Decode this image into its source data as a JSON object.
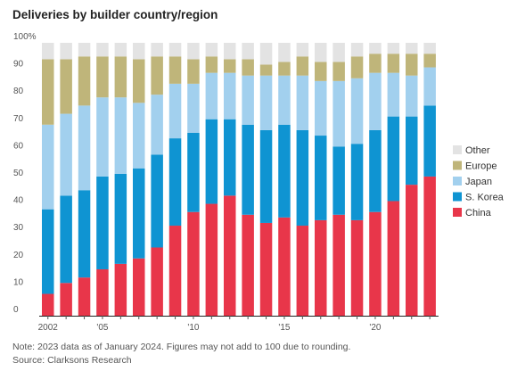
{
  "title": "Deliveries by builder country/region",
  "note": "Note: 2023 data as of January 2024. Figures may not add to 100 due to rounding.",
  "source": "Source: Clarksons Research",
  "chart_data": {
    "type": "bar",
    "stacked": true,
    "x": [
      2002,
      2003,
      2004,
      2005,
      2006,
      2007,
      2008,
      2009,
      2010,
      2011,
      2012,
      2013,
      2014,
      2015,
      2016,
      2017,
      2018,
      2019,
      2020,
      2021,
      2022,
      2023
    ],
    "x_tick_labels": [
      {
        "year": 2002,
        "label": "2002"
      },
      {
        "year": 2005,
        "label": "'05"
      },
      {
        "year": 2010,
        "label": "'10"
      },
      {
        "year": 2015,
        "label": "'15"
      },
      {
        "year": 2020,
        "label": "'20"
      }
    ],
    "y_ticks": [
      "0",
      "10",
      "20",
      "30",
      "40",
      "50",
      "60",
      "70",
      "80",
      "90",
      "100%"
    ],
    "ylim": [
      0,
      100
    ],
    "grid": false,
    "legend_placement": "right",
    "series": [
      {
        "name": "China",
        "color": "#e8364a",
        "values": [
          8,
          12,
          14,
          17,
          19,
          21,
          25,
          33,
          38,
          41,
          44,
          37,
          34,
          36,
          33,
          35,
          37,
          35,
          38,
          42,
          48,
          51
        ]
      },
      {
        "name": "S. Korea",
        "color": "#0f94d2",
        "values": [
          31,
          32,
          32,
          34,
          33,
          33,
          34,
          32,
          29,
          31,
          28,
          33,
          34,
          34,
          35,
          31,
          25,
          28,
          30,
          31,
          25,
          26
        ]
      },
      {
        "name": "Japan",
        "color": "#a2d0ee",
        "values": [
          31,
          30,
          31,
          29,
          28,
          24,
          22,
          20,
          18,
          17,
          17,
          18,
          20,
          18,
          20,
          20,
          24,
          24,
          21,
          16,
          15,
          14
        ]
      },
      {
        "name": "Europe",
        "color": "#bfb57a",
        "values": [
          24,
          20,
          18,
          15,
          15,
          16,
          14,
          10,
          9,
          6,
          5,
          6,
          4,
          5,
          7,
          7,
          7,
          8,
          7,
          7,
          8,
          5
        ]
      },
      {
        "name": "Other",
        "color": "#e3e3e3",
        "values": [
          6,
          6,
          5,
          5,
          5,
          6,
          5,
          5,
          6,
          5,
          6,
          6,
          8,
          7,
          5,
          7,
          7,
          5,
          4,
          4,
          4,
          4
        ]
      }
    ]
  }
}
